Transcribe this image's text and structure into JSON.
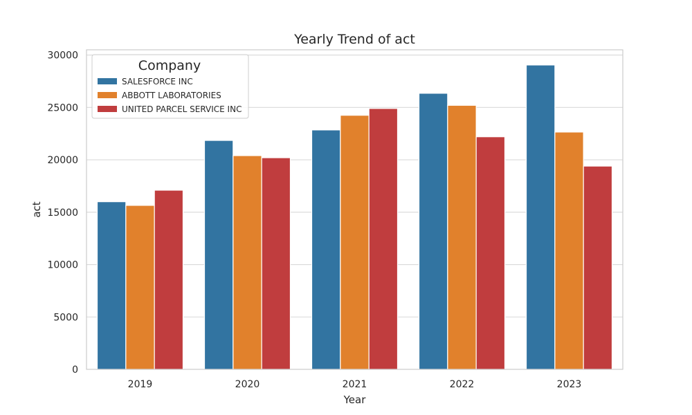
{
  "chart_data": {
    "type": "bar",
    "title": "Yearly Trend of act",
    "xlabel": "Year",
    "ylabel": "act",
    "categories": [
      "2019",
      "2020",
      "2021",
      "2022",
      "2023"
    ],
    "ylim": [
      0,
      30500
    ],
    "yticks": [
      0,
      5000,
      10000,
      15000,
      20000,
      25000,
      30000
    ],
    "grid": true,
    "legend": {
      "title": "Company",
      "placement": "top-left"
    },
    "series": [
      {
        "name": "SALESFORCE INC",
        "color": "#3274a1",
        "values": [
          16000,
          21850,
          22850,
          26350,
          29050
        ]
      },
      {
        "name": "ABBOTT LABORATORIES",
        "color": "#e1812c",
        "values": [
          15650,
          20400,
          24250,
          25200,
          22650
        ]
      },
      {
        "name": "UNITED PARCEL SERVICE INC",
        "color": "#c03d3e",
        "values": [
          17100,
          20200,
          24900,
          22200,
          19400
        ]
      }
    ]
  }
}
